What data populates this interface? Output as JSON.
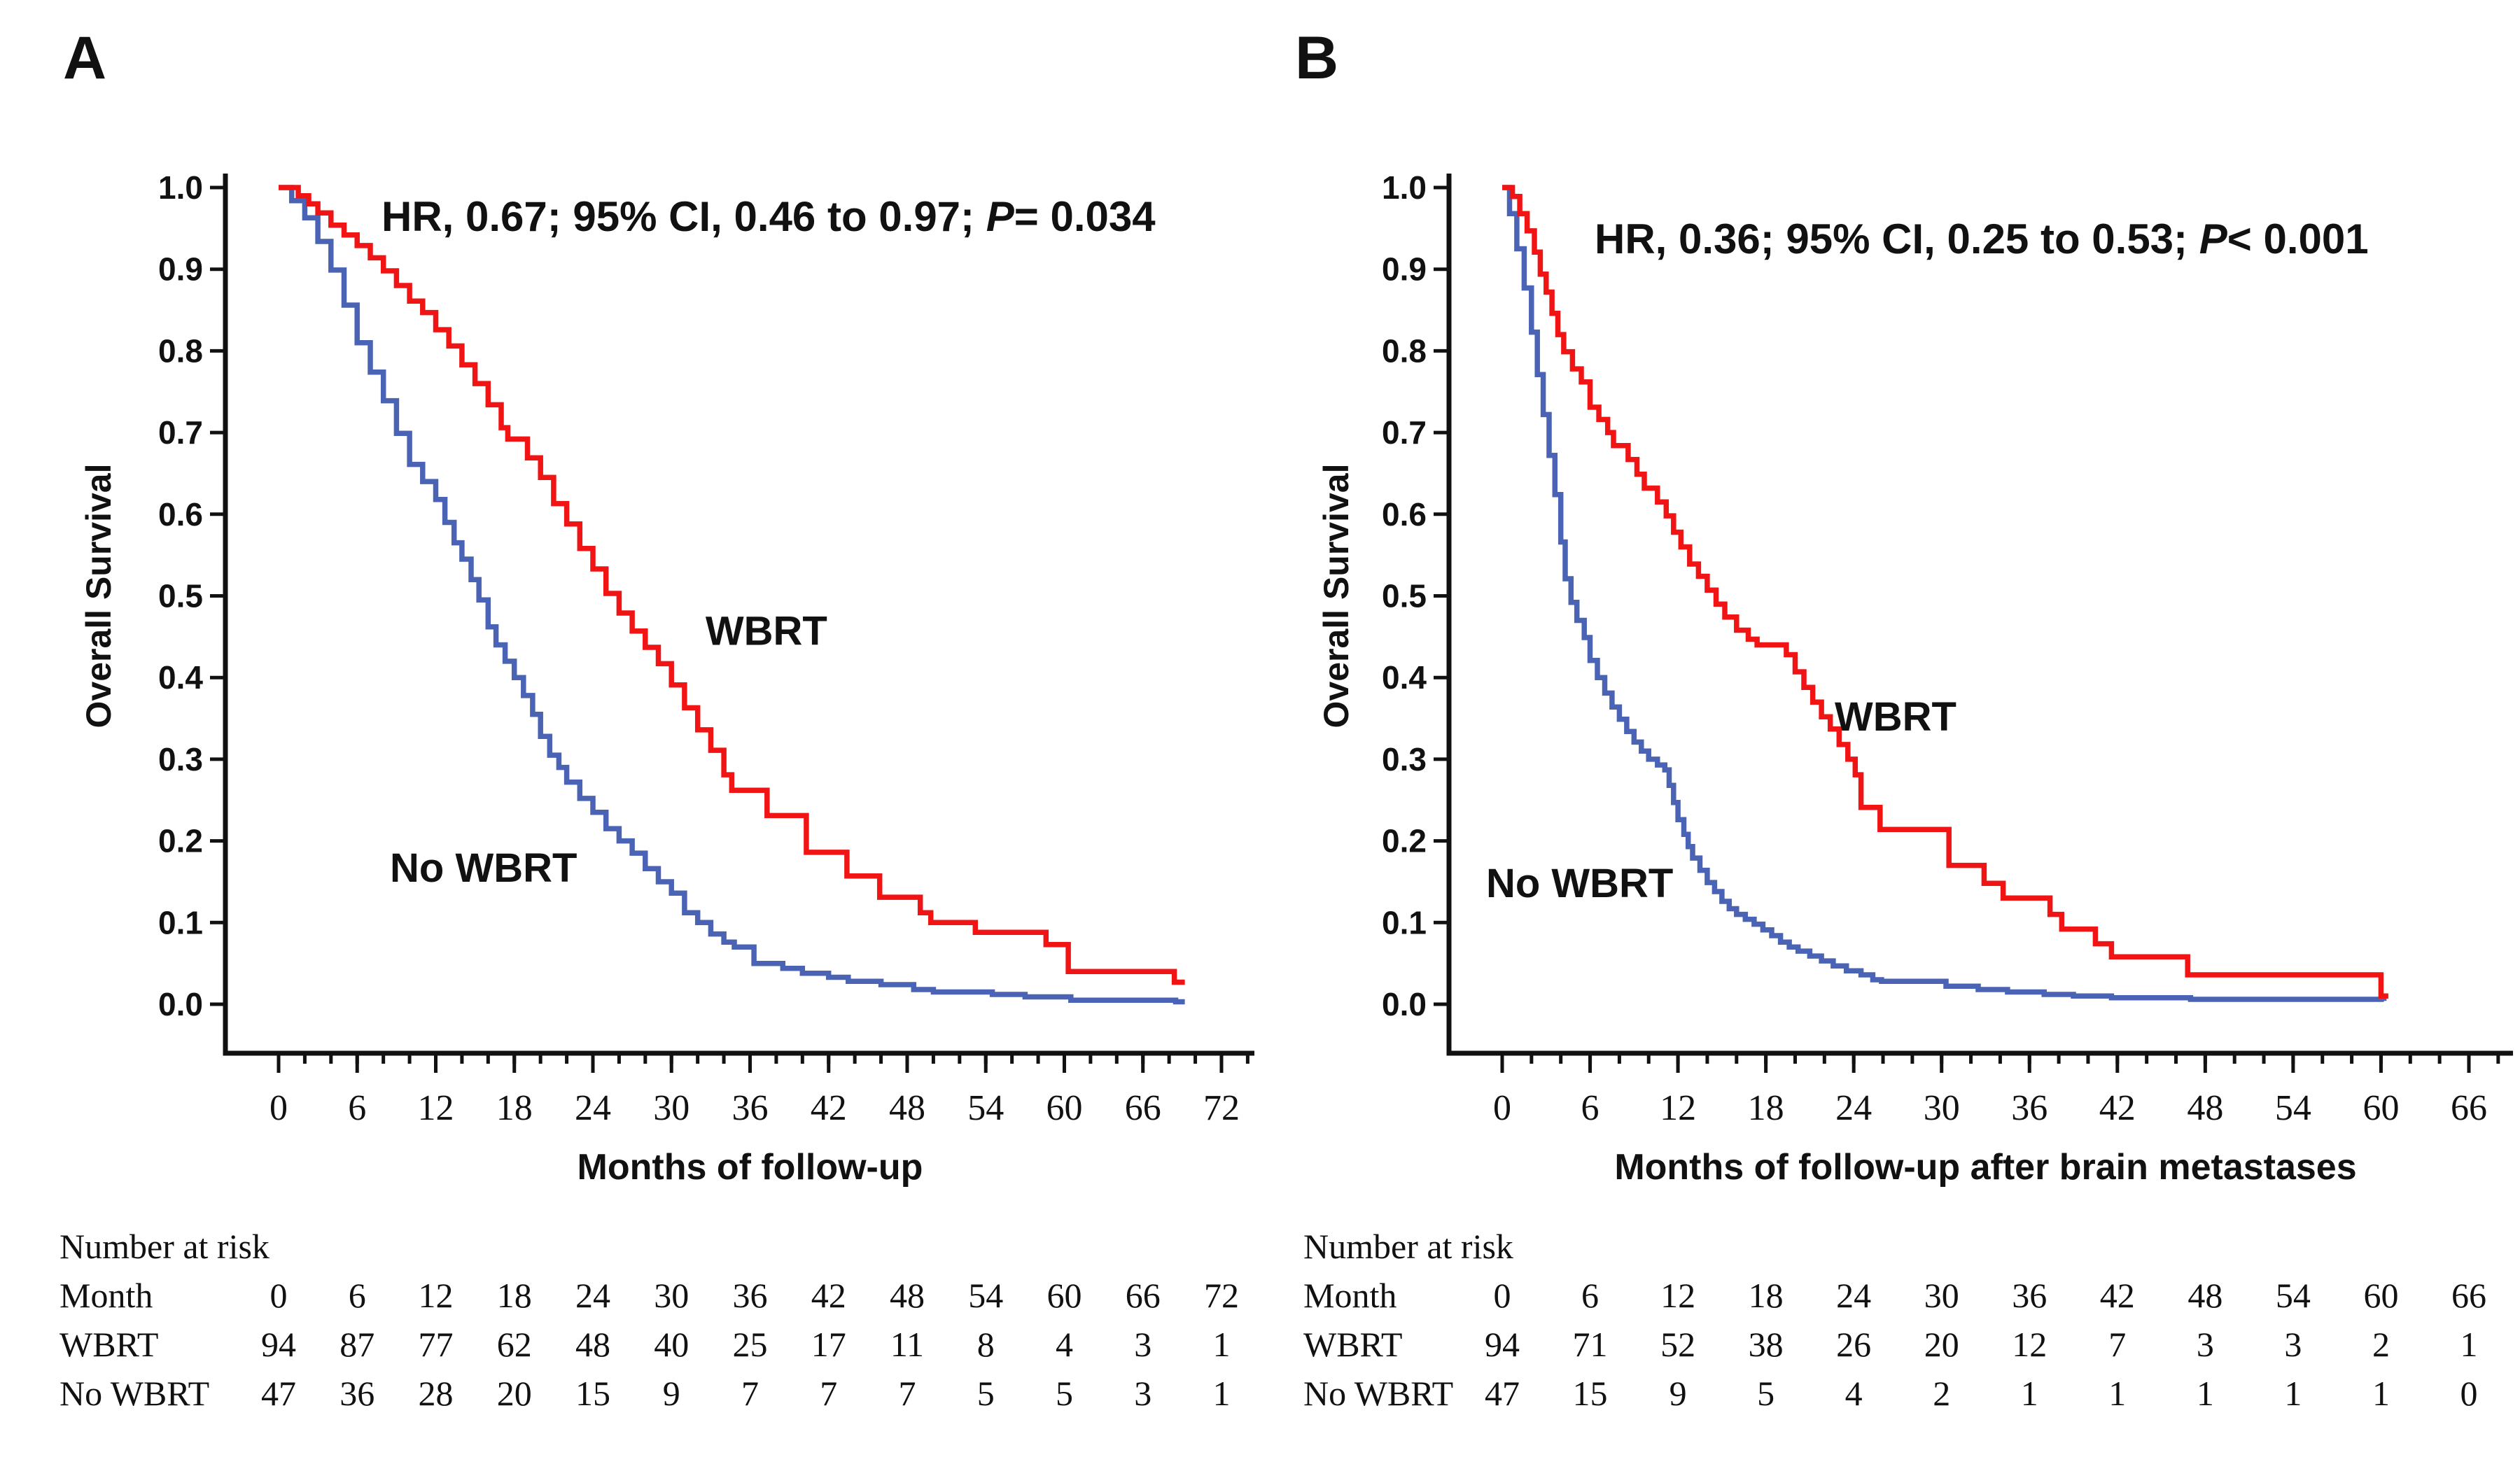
{
  "figure_title": "Kaplan-Meier overall survival, WBRT vs No WBRT",
  "colors": {
    "wbrt": "#f11414",
    "no_wbrt": "#4a63b4",
    "axis": "#111111",
    "text": "#111111",
    "background": "#ffffff"
  },
  "chart_data": [
    {
      "id": "A",
      "type": "line",
      "subtype": "kaplan-meier-step",
      "panel_letter": "A",
      "annotation": {
        "text": "HR, 0.67; 95% CI, 0.46 to 0.97; P = 0.034",
        "parts": [
          "HR, 0.67; 95% CI, 0.46 to 0.97; ",
          "P",
          "= 0.034"
        ],
        "italic_part_index": 1
      },
      "xlabel": "Months of follow-up",
      "ylabel": "Overall Survival",
      "xlim": [
        0,
        74
      ],
      "ylim": [
        0.0,
        1.0
      ],
      "x_major_ticks": [
        0,
        6,
        12,
        18,
        24,
        30,
        36,
        42,
        48,
        54,
        60,
        66,
        72
      ],
      "x_minor_step": 2,
      "y_tick_labels": [
        "0.0",
        "0.1",
        "0.2",
        "0.3",
        "0.4",
        "0.5",
        "0.6",
        "0.7",
        "0.8",
        "0.9",
        "1.0"
      ],
      "grid": false,
      "legend": "labels drawn on curves",
      "curve_labels": [
        {
          "text": "WBRT",
          "month": 32.6,
          "s": 0.44
        },
        {
          "text": "No WBRT",
          "month": 8.5,
          "s": 0.15
        }
      ],
      "series": [
        {
          "name": "No WBRT",
          "color_key": "no_wbrt",
          "points": [
            [
              0,
              1.0
            ],
            [
              1,
              0.984
            ],
            [
              2,
              0.963
            ],
            [
              3,
              0.934
            ],
            [
              4,
              0.899
            ],
            [
              5,
              0.856
            ],
            [
              6,
              0.81
            ],
            [
              7,
              0.774
            ],
            [
              8,
              0.739
            ],
            [
              9,
              0.699
            ],
            [
              10,
              0.661
            ],
            [
              11,
              0.64
            ],
            [
              12,
              0.618
            ],
            [
              12.7,
              0.59
            ],
            [
              13.4,
              0.565
            ],
            [
              14,
              0.545
            ],
            [
              14.7,
              0.52
            ],
            [
              15.3,
              0.495
            ],
            [
              16,
              0.462
            ],
            [
              16.6,
              0.44
            ],
            [
              17.3,
              0.42
            ],
            [
              18,
              0.4
            ],
            [
              18.7,
              0.378
            ],
            [
              19.4,
              0.355
            ],
            [
              20,
              0.328
            ],
            [
              20.7,
              0.305
            ],
            [
              21.4,
              0.29
            ],
            [
              22,
              0.272
            ],
            [
              23,
              0.252
            ],
            [
              24,
              0.235
            ],
            [
              25,
              0.215
            ],
            [
              26,
              0.2
            ],
            [
              27,
              0.185
            ],
            [
              28,
              0.166
            ],
            [
              29,
              0.15
            ],
            [
              30,
              0.136
            ],
            [
              31,
              0.112
            ],
            [
              32,
              0.1
            ],
            [
              33,
              0.086
            ],
            [
              34,
              0.076
            ],
            [
              34.8,
              0.07
            ],
            [
              36.3,
              0.05
            ],
            [
              38.5,
              0.044
            ],
            [
              40,
              0.038
            ],
            [
              42,
              0.033
            ],
            [
              43.5,
              0.028
            ],
            [
              46,
              0.024
            ],
            [
              48.5,
              0.018
            ],
            [
              50,
              0.015
            ],
            [
              54.5,
              0.012
            ],
            [
              57,
              0.009
            ],
            [
              60.5,
              0.005
            ],
            [
              68.5,
              0.003
            ],
            [
              69.2,
              0.003
            ]
          ]
        },
        {
          "name": "WBRT",
          "color_key": "wbrt",
          "points": [
            [
              0,
              1.0
            ],
            [
              1.5,
              0.99
            ],
            [
              2.3,
              0.98
            ],
            [
              3,
              0.969
            ],
            [
              4,
              0.954
            ],
            [
              5,
              0.942
            ],
            [
              6,
              0.929
            ],
            [
              7,
              0.914
            ],
            [
              8,
              0.898
            ],
            [
              9,
              0.88
            ],
            [
              10,
              0.861
            ],
            [
              11,
              0.847
            ],
            [
              12,
              0.826
            ],
            [
              13,
              0.806
            ],
            [
              14,
              0.783
            ],
            [
              15,
              0.76
            ],
            [
              16,
              0.734
            ],
            [
              17,
              0.706
            ],
            [
              17.5,
              0.692
            ],
            [
              19,
              0.669
            ],
            [
              20,
              0.645
            ],
            [
              21,
              0.613
            ],
            [
              22,
              0.588
            ],
            [
              23,
              0.558
            ],
            [
              24,
              0.533
            ],
            [
              25,
              0.503
            ],
            [
              26,
              0.479
            ],
            [
              27,
              0.457
            ],
            [
              28,
              0.437
            ],
            [
              29,
              0.417
            ],
            [
              30,
              0.391
            ],
            [
              31,
              0.363
            ],
            [
              32,
              0.336
            ],
            [
              33,
              0.311
            ],
            [
              34,
              0.281
            ],
            [
              34.6,
              0.262
            ],
            [
              37.3,
              0.231
            ],
            [
              40.3,
              0.186
            ],
            [
              43.4,
              0.157
            ],
            [
              45.9,
              0.131
            ],
            [
              49,
              0.112
            ],
            [
              49.8,
              0.1
            ],
            [
              53.2,
              0.088
            ],
            [
              58.6,
              0.073
            ],
            [
              60.3,
              0.04
            ],
            [
              68.4,
              0.027
            ],
            [
              69.2,
              0.027
            ]
          ]
        }
      ],
      "risk_table": {
        "title": "Number at risk",
        "row_header_label": "Month",
        "months": [
          0,
          6,
          12,
          18,
          24,
          30,
          36,
          42,
          48,
          54,
          60,
          66,
          72
        ],
        "rows": [
          {
            "label": "WBRT",
            "values": [
              94,
              87,
              77,
              62,
              48,
              40,
              25,
              17,
              11,
              8,
              4,
              3,
              1
            ]
          },
          {
            "label": "No WBRT",
            "values": [
              47,
              36,
              28,
              20,
              15,
              9,
              7,
              7,
              7,
              5,
              5,
              3,
              1
            ]
          }
        ]
      }
    },
    {
      "id": "B",
      "type": "line",
      "subtype": "kaplan-meier-step",
      "panel_letter": "B",
      "annotation": {
        "text": "HR, 0.36; 95% CI, 0.25 to 0.53; P < 0.001",
        "parts": [
          "HR, 0.36; 95% CI, 0.25 to 0.53; ",
          "P",
          "< 0.001"
        ],
        "italic_part_index": 1
      },
      "xlabel": "Months of follow-up after brain metastases",
      "ylabel": "Overall Survival",
      "xlim": [
        0,
        68
      ],
      "ylim": [
        0.0,
        1.0
      ],
      "x_major_ticks": [
        0,
        6,
        12,
        18,
        24,
        30,
        36,
        42,
        48,
        54,
        60,
        66
      ],
      "x_minor_step": 2,
      "y_tick_labels": [
        "0.0",
        "0.1",
        "0.2",
        "0.3",
        "0.4",
        "0.5",
        "0.6",
        "0.7",
        "0.8",
        "0.9",
        "1.0"
      ],
      "grid": false,
      "legend": "labels drawn on curves",
      "curve_labels": [
        {
          "text": "WBRT",
          "month": 22.7,
          "s": 0.335
        },
        {
          "text": "No WBRT",
          "month": -1.1,
          "s": 0.131
        }
      ],
      "series": [
        {
          "name": "No WBRT",
          "color_key": "no_wbrt",
          "points": [
            [
              0,
              1.0
            ],
            [
              0.5,
              0.968
            ],
            [
              1,
              0.925
            ],
            [
              1.5,
              0.877
            ],
            [
              2,
              0.823
            ],
            [
              2.4,
              0.771
            ],
            [
              2.8,
              0.722
            ],
            [
              3.2,
              0.672
            ],
            [
              3.6,
              0.624
            ],
            [
              4,
              0.566
            ],
            [
              4.3,
              0.521
            ],
            [
              4.7,
              0.492
            ],
            [
              5.1,
              0.47
            ],
            [
              5.6,
              0.449
            ],
            [
              6,
              0.421
            ],
            [
              6.5,
              0.4
            ],
            [
              7,
              0.381
            ],
            [
              7.5,
              0.364
            ],
            [
              8,
              0.349
            ],
            [
              8.5,
              0.334
            ],
            [
              9,
              0.321
            ],
            [
              9.5,
              0.31
            ],
            [
              10,
              0.3
            ],
            [
              10.6,
              0.293
            ],
            [
              11.1,
              0.287
            ],
            [
              11.4,
              0.268
            ],
            [
              11.7,
              0.247
            ],
            [
              12,
              0.226
            ],
            [
              12.4,
              0.208
            ],
            [
              12.7,
              0.193
            ],
            [
              13,
              0.179
            ],
            [
              13.5,
              0.164
            ],
            [
              14,
              0.149
            ],
            [
              14.5,
              0.138
            ],
            [
              15,
              0.126
            ],
            [
              15.5,
              0.117
            ],
            [
              16,
              0.11
            ],
            [
              16.6,
              0.104
            ],
            [
              17.2,
              0.098
            ],
            [
              17.8,
              0.091
            ],
            [
              18.4,
              0.084
            ],
            [
              19,
              0.076
            ],
            [
              19.6,
              0.07
            ],
            [
              20.2,
              0.065
            ],
            [
              21,
              0.059
            ],
            [
              21.8,
              0.053
            ],
            [
              22.6,
              0.047
            ],
            [
              23.5,
              0.041
            ],
            [
              24.5,
              0.036
            ],
            [
              25.3,
              0.03
            ],
            [
              25.9,
              0.028
            ],
            [
              30.3,
              0.022
            ],
            [
              32.5,
              0.018
            ],
            [
              34.5,
              0.015
            ],
            [
              37,
              0.012
            ],
            [
              39,
              0.01
            ],
            [
              41.6,
              0.008
            ],
            [
              47,
              0.006
            ],
            [
              60.2,
              0.004
            ]
          ]
        },
        {
          "name": "WBRT",
          "color_key": "wbrt",
          "points": [
            [
              0,
              1.0
            ],
            [
              0.7,
              0.989
            ],
            [
              1.2,
              0.968
            ],
            [
              1.7,
              0.947
            ],
            [
              2.2,
              0.921
            ],
            [
              2.6,
              0.894
            ],
            [
              3,
              0.872
            ],
            [
              3.4,
              0.846
            ],
            [
              3.8,
              0.82
            ],
            [
              4.2,
              0.799
            ],
            [
              4.8,
              0.778
            ],
            [
              5.4,
              0.762
            ],
            [
              6,
              0.731
            ],
            [
              6.6,
              0.716
            ],
            [
              7.2,
              0.7
            ],
            [
              7.6,
              0.684
            ],
            [
              8.6,
              0.667
            ],
            [
              9.2,
              0.649
            ],
            [
              9.7,
              0.632
            ],
            [
              10.6,
              0.615
            ],
            [
              11.2,
              0.598
            ],
            [
              11.7,
              0.578
            ],
            [
              12.2,
              0.56
            ],
            [
              12.8,
              0.539
            ],
            [
              13.4,
              0.524
            ],
            [
              14,
              0.507
            ],
            [
              14.6,
              0.49
            ],
            [
              15.2,
              0.474
            ],
            [
              16,
              0.458
            ],
            [
              16.8,
              0.447
            ],
            [
              17.4,
              0.44
            ],
            [
              19.4,
              0.428
            ],
            [
              20,
              0.407
            ],
            [
              20.6,
              0.388
            ],
            [
              21.2,
              0.37
            ],
            [
              21.8,
              0.352
            ],
            [
              22.4,
              0.337
            ],
            [
              23,
              0.318
            ],
            [
              23.6,
              0.3
            ],
            [
              24.1,
              0.281
            ],
            [
              24.5,
              0.241
            ],
            [
              25.8,
              0.214
            ],
            [
              30.5,
              0.17
            ],
            [
              32.9,
              0.148
            ],
            [
              34.2,
              0.13
            ],
            [
              37.4,
              0.11
            ],
            [
              38.2,
              0.092
            ],
            [
              40.5,
              0.074
            ],
            [
              41.6,
              0.058
            ],
            [
              46.8,
              0.036
            ],
            [
              60,
              0.01
            ],
            [
              60.5,
              0.01
            ]
          ]
        }
      ],
      "risk_table": {
        "title": "Number at risk",
        "row_header_label": "Month",
        "months": [
          0,
          6,
          12,
          18,
          24,
          30,
          36,
          42,
          48,
          54,
          60,
          66
        ],
        "rows": [
          {
            "label": "WBRT",
            "values": [
              94,
              71,
              52,
              38,
              26,
              20,
              12,
              7,
              3,
              3,
              2,
              1
            ]
          },
          {
            "label": "No WBRT",
            "values": [
              47,
              15,
              9,
              5,
              4,
              2,
              1,
              1,
              1,
              1,
              1,
              0
            ]
          }
        ]
      }
    }
  ]
}
